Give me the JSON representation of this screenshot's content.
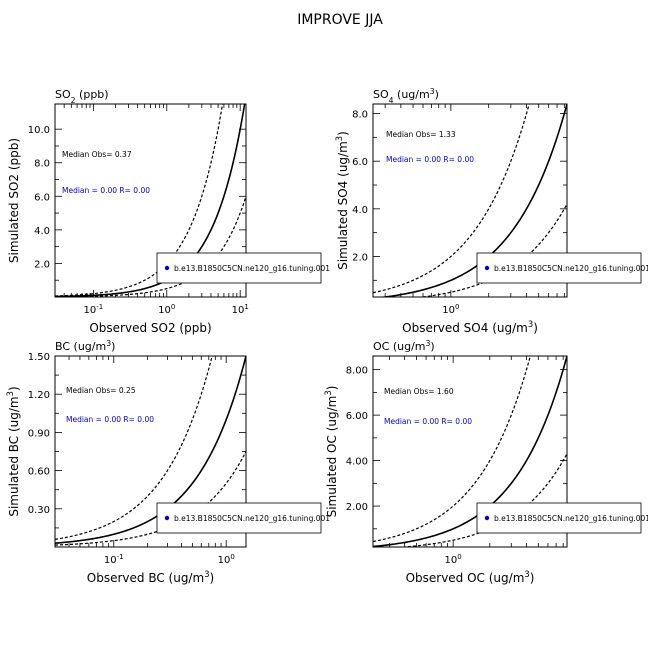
{
  "figure_title": "IMPROVE JJA",
  "chart_data": [
    {
      "type": "scatter",
      "panel_title": "SO2 (ppb)",
      "xlabel": "Observed SO2 (ppb)",
      "ylabel": "Simulated SO2 (ppb)",
      "x_scale": "log",
      "xlim": [
        0.03,
        12
      ],
      "ylim": [
        0,
        11.5
      ],
      "x_ticks": [
        0.1,
        1,
        10
      ],
      "x_tick_labels": [
        "10-1",
        "100",
        "101"
      ],
      "y_ticks": [
        2,
        4,
        6,
        8,
        10
      ],
      "y_tick_labels": [
        "2.0",
        "4.0",
        "6.0",
        "8.0",
        "10.0"
      ],
      "reference_lines": [
        "1:1",
        "2:1",
        "1:2"
      ],
      "median_obs_text": "Median Obs= 0.37",
      "median_text": "Median = 0.00 R= 0.00",
      "legend_entry": "b.e13.B1850C5CN.ne120_g16.tuning.001",
      "legend_position": "bottom-right",
      "series": [
        {
          "name": "b.e13.B1850C5CN.ne120_g16.tuning.001",
          "color": "#0000cc",
          "points": []
        }
      ]
    },
    {
      "type": "scatter",
      "panel_title": "SO4 (ug/m3)",
      "xlabel": "Observed SO4 (ug/m3)",
      "ylabel": "Simulated SO4 (ug/m3)",
      "x_scale": "log",
      "xlim": [
        0.24,
        8.4
      ],
      "ylim": [
        0.3,
        8.4
      ],
      "x_ticks": [
        1
      ],
      "x_tick_labels": [
        "100"
      ],
      "y_ticks": [
        2,
        4,
        6,
        8
      ],
      "y_tick_labels": [
        "2.0",
        "4.0",
        "6.0",
        "8.0"
      ],
      "reference_lines": [
        "1:1",
        "2:1",
        "1:2"
      ],
      "median_obs_text": "Median Obs= 1.33",
      "median_text": "Median = 0.00 R= 0.00",
      "legend_entry": "b.e13.B1850C5CN.ne120_g16.tuning.001",
      "legend_position": "bottom-right",
      "series": [
        {
          "name": "b.e13.B1850C5CN.ne120_g16.tuning.001",
          "color": "#0000cc",
          "points": []
        }
      ]
    },
    {
      "type": "scatter",
      "panel_title": "BC (ug/m3)",
      "xlabel": "Observed BC (ug/m3)",
      "ylabel": "Simulated BC (ug/m3)",
      "x_scale": "log",
      "xlim": [
        0.03,
        1.5
      ],
      "ylim": [
        0,
        1.5
      ],
      "x_ticks": [
        0.1,
        1
      ],
      "x_tick_labels": [
        "10-1",
        "100"
      ],
      "y_ticks": [
        0.3,
        0.6,
        0.9,
        1.2,
        1.5
      ],
      "y_tick_labels": [
        "0.30",
        "0.60",
        "0.90",
        "1.20",
        "1.50"
      ],
      "reference_lines": [
        "1:1",
        "2:1",
        "1:2"
      ],
      "median_obs_text": "Median Obs= 0.25",
      "median_text": "Median = 0.00 R= 0.00",
      "legend_entry": "b.e13.B1850C5CN.ne120_g16.tuning.001",
      "legend_position": "bottom-right",
      "series": [
        {
          "name": "b.e13.B1850C5CN.ne120_g16.tuning.001",
          "color": "#0000cc",
          "points": []
        }
      ]
    },
    {
      "type": "scatter",
      "panel_title": "OC (ug/m3)",
      "xlabel": "Observed OC (ug/m3)",
      "ylabel": "Simulated OC (ug/m3)",
      "x_scale": "log",
      "xlim": [
        0.22,
        8.6
      ],
      "ylim": [
        0.2,
        8.6
      ],
      "x_ticks": [
        1
      ],
      "x_tick_labels": [
        "100"
      ],
      "y_ticks": [
        2,
        4,
        6,
        8
      ],
      "y_tick_labels": [
        "2.00",
        "4.00",
        "6.00",
        "8.00"
      ],
      "reference_lines": [
        "1:1",
        "2:1",
        "1:2"
      ],
      "median_obs_text": "Median Obs= 1.60",
      "median_text": "Median = 0.00 R= 0.00",
      "legend_entry": "b.e13.B1850C5CN.ne120_g16.tuning.001",
      "legend_position": "bottom-right",
      "series": [
        {
          "name": "b.e13.B1850C5CN.ne120_g16.tuning.001",
          "color": "#0000cc",
          "points": []
        }
      ]
    }
  ]
}
